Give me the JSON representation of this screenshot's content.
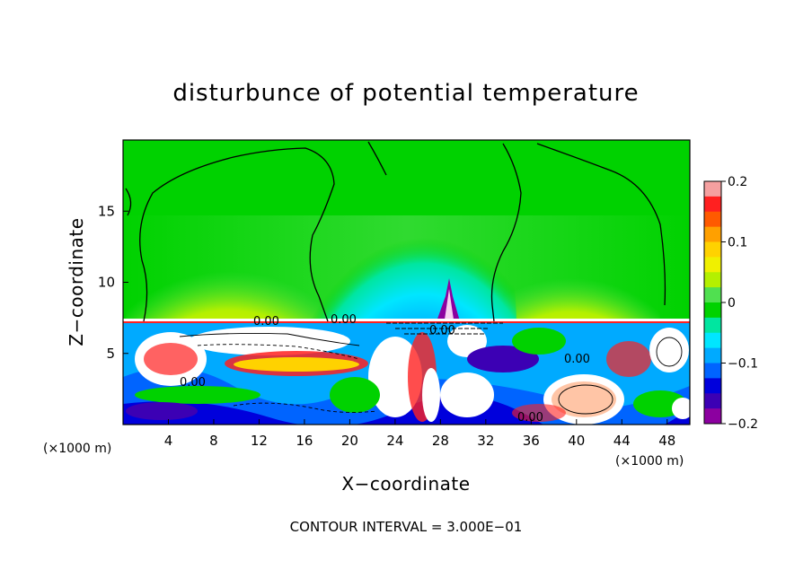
{
  "chart_data": {
    "type": "heatmap",
    "title": "disturbunce of potential temperature",
    "xlabel": "X−coordinate",
    "ylabel": "Z−coordinate",
    "x_unit": "(×1000 m)",
    "y_unit": "(×1000 m)",
    "xlim": [
      0,
      50
    ],
    "ylim": [
      0,
      20
    ],
    "xticks": [
      "4",
      "8",
      "12",
      "16",
      "20",
      "24",
      "28",
      "32",
      "36",
      "40",
      "44",
      "48"
    ],
    "yticks": [
      "5",
      "10",
      "15"
    ],
    "colorbar": {
      "range": [
        -0.2,
        0.2
      ],
      "ticks": [
        "0.2",
        "0.1",
        "0",
        "−0.1",
        "−0.2"
      ],
      "colors": [
        "#f5a0a0",
        "#ff2020",
        "#ff5a00",
        "#ffa000",
        "#ffd200",
        "#f0f000",
        "#b4f000",
        "#50e050",
        "#00d200",
        "#00e6a0",
        "#00e6ff",
        "#00aaff",
        "#0064ff",
        "#0000dc",
        "#3c00b4",
        "#8c00a0"
      ]
    },
    "contour_labels": [
      "0.00",
      "0.00",
      "0.00",
      "0.00",
      "0.00",
      "0.00"
    ],
    "contour_interval_text": "CONTOUR INTERVAL = 3.000E−01"
  }
}
